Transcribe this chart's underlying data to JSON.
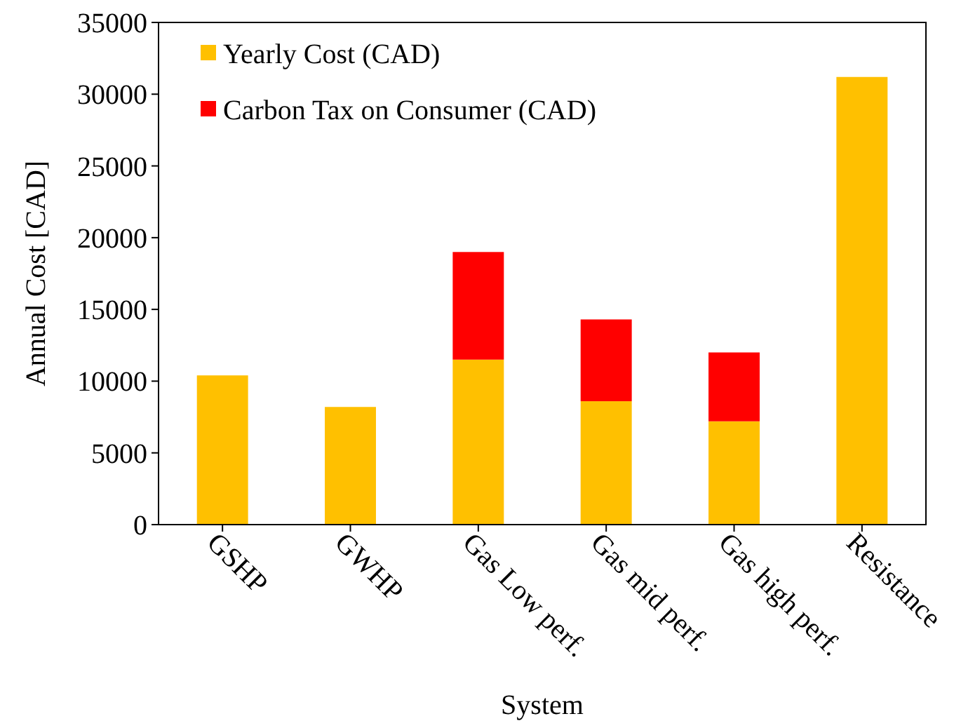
{
  "chart_data": {
    "type": "bar",
    "xlabel": "System",
    "ylabel": "Annual Cost [CAD]",
    "categories": [
      "GSHP",
      "GWHP",
      "Gas Low perf.",
      "Gas mid perf.",
      "Gas high perf.",
      "Resistance"
    ],
    "series": [
      {
        "name": "Yearly Cost (CAD)",
        "color": "#ffc000",
        "values": [
          10400,
          8200,
          11500,
          8600,
          7200,
          31200
        ]
      },
      {
        "name": "Carbon Tax on Consumer (CAD)",
        "color": "#ff0000",
        "values": [
          0,
          0,
          7500,
          5700,
          4800,
          0
        ]
      }
    ],
    "stacked": true,
    "ylim": [
      0,
      35000
    ],
    "yticks": [
      0,
      5000,
      10000,
      15000,
      20000,
      25000,
      30000,
      35000
    ],
    "grid": false,
    "legend": "top left"
  }
}
